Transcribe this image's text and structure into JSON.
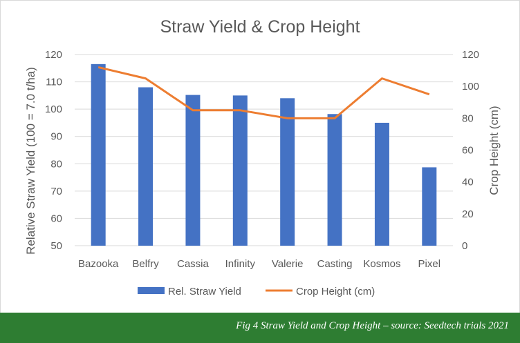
{
  "colors": {
    "bar": "#4472c4",
    "line": "#ed7d31",
    "gridline": "#d9d9d9",
    "text": "#595959",
    "caption_bg": "#2e7d32",
    "caption_text": "#ffffff"
  },
  "caption": "Fig 4 Straw Yield and Crop Height – source: Seedtech trials 2021",
  "chart_data": {
    "type": "bar",
    "title": "Straw Yield & Crop Height",
    "categories": [
      "Bazooka",
      "Belfry",
      "Cassia",
      "Infinity",
      "Valerie",
      "Casting",
      "Kosmos",
      "Pixel"
    ],
    "series": [
      {
        "name": "Rel. Straw Yield",
        "type": "bar",
        "axis": "left",
        "values": [
          116.5,
          108,
          105.2,
          105,
          104,
          98.2,
          95,
          78.7
        ]
      },
      {
        "name": "Crop Height (cm)",
        "type": "line",
        "axis": "right",
        "values": [
          112,
          105,
          85,
          85,
          80,
          80,
          105,
          95
        ]
      }
    ],
    "ylabel": "Relative Straw Yield (100 = 7.0 t/ha)",
    "y2label": "Crop Height (cm)",
    "ylim": [
      50,
      120
    ],
    "y2lim": [
      0,
      120
    ],
    "yticks": [
      "50",
      "60",
      "70",
      "80",
      "90",
      "100",
      "110",
      "120"
    ],
    "y2ticks": [
      "0",
      "20",
      "40",
      "60",
      "80",
      "100",
      "120"
    ],
    "grid": true,
    "legend": "bottom"
  }
}
